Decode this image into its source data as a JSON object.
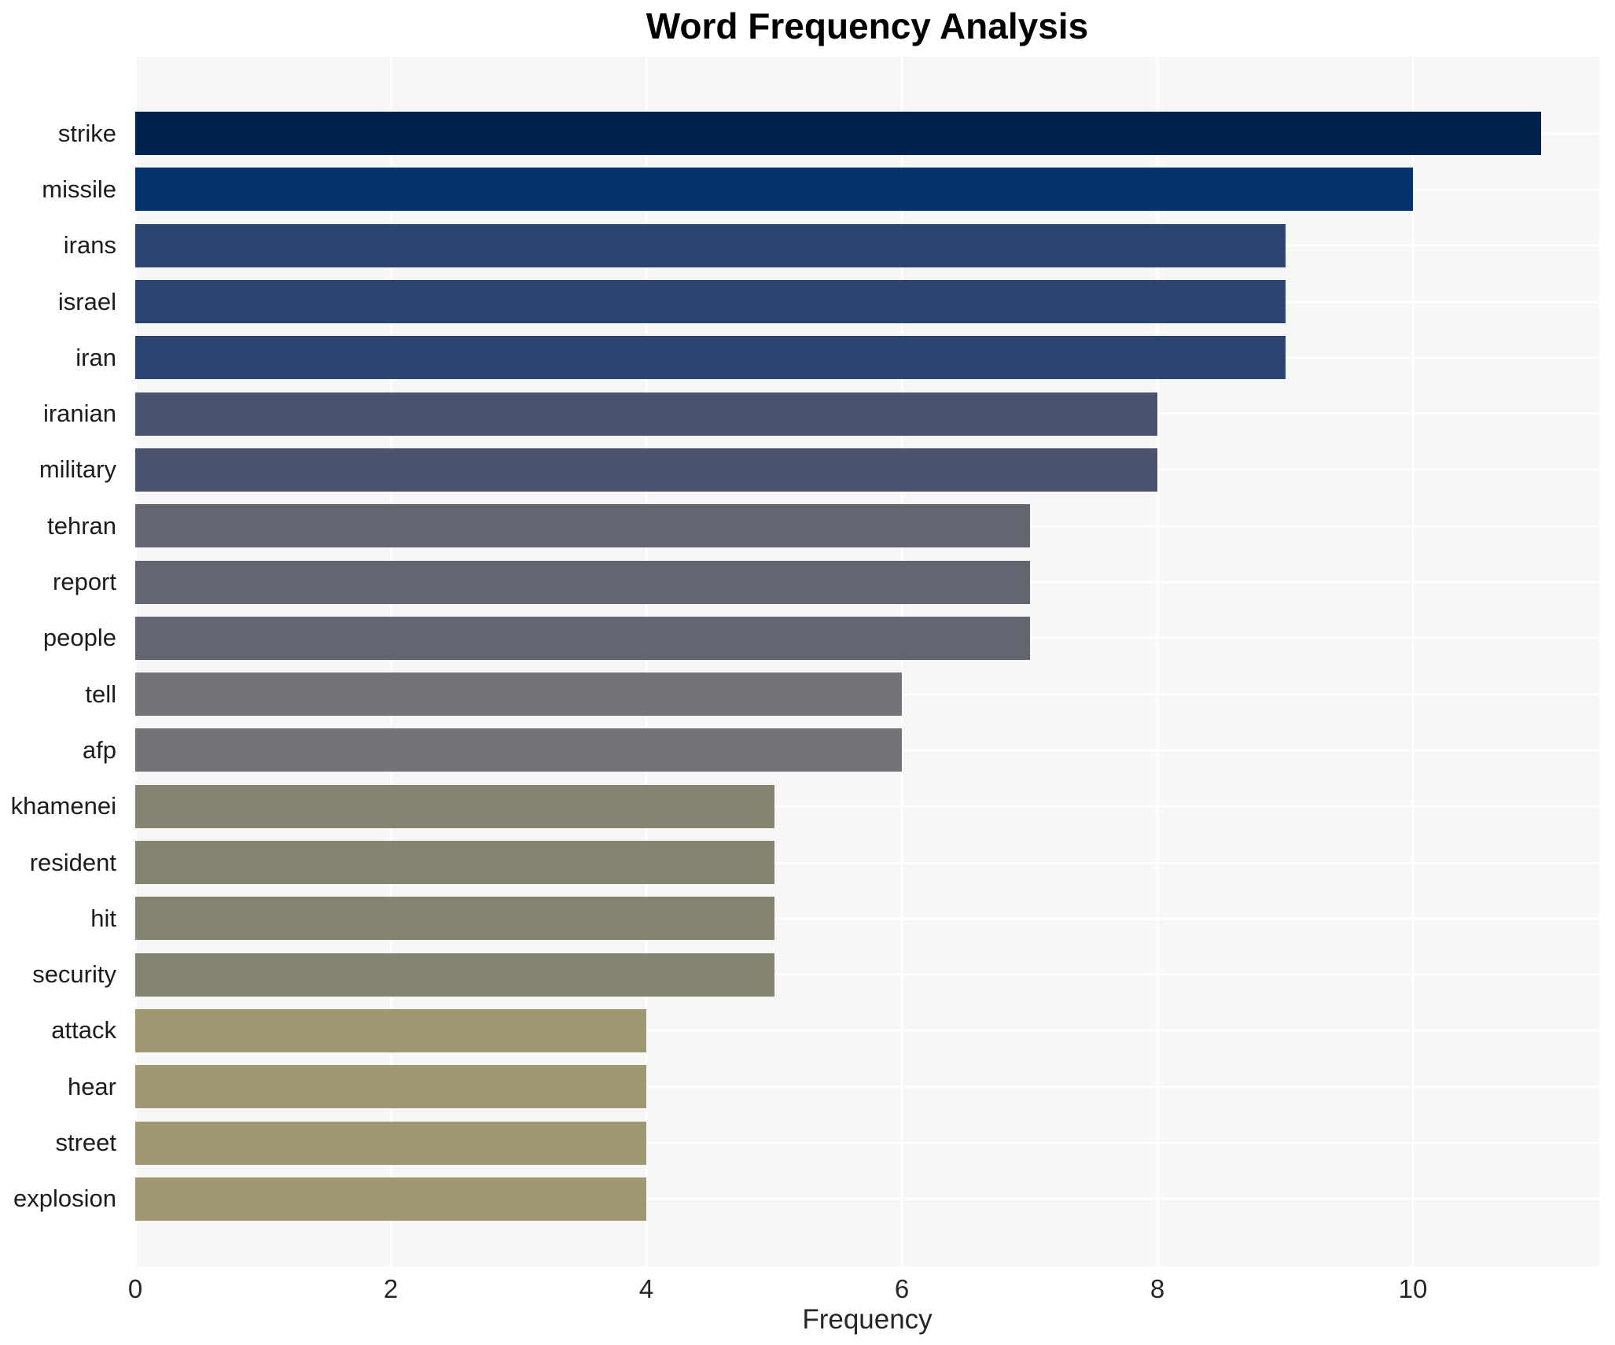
{
  "title": "Word Frequency Analysis",
  "chart_data": {
    "type": "bar",
    "orientation": "horizontal",
    "title": "Word Frequency Analysis",
    "xlabel": "Frequency",
    "ylabel": "",
    "categories": [
      "strike",
      "missile",
      "irans",
      "israel",
      "iran",
      "iranian",
      "military",
      "tehran",
      "report",
      "people",
      "tell",
      "afp",
      "khamenei",
      "resident",
      "hit",
      "security",
      "attack",
      "hear",
      "street",
      "explosion"
    ],
    "values": [
      11,
      10,
      9,
      9,
      9,
      8,
      8,
      7,
      7,
      7,
      6,
      6,
      5,
      5,
      5,
      5,
      4,
      4,
      4,
      4
    ],
    "bar_colors": [
      "#02224e",
      "#04336e",
      "#2e4470",
      "#2e4470",
      "#2e4470",
      "#4b536e",
      "#4b536e",
      "#626670",
      "#626670",
      "#626670",
      "#737477",
      "#737477",
      "#858472",
      "#858472",
      "#858472",
      "#858472",
      "#a09873",
      "#a09873",
      "#a09873",
      "#a09873"
    ],
    "xlim": [
      0,
      11.46
    ],
    "x_ticks": [
      0,
      2,
      4,
      6,
      8,
      10
    ],
    "grid": true,
    "legend": false,
    "plot_bg": "#f7f7f8",
    "grid_color": "#ffffff"
  }
}
